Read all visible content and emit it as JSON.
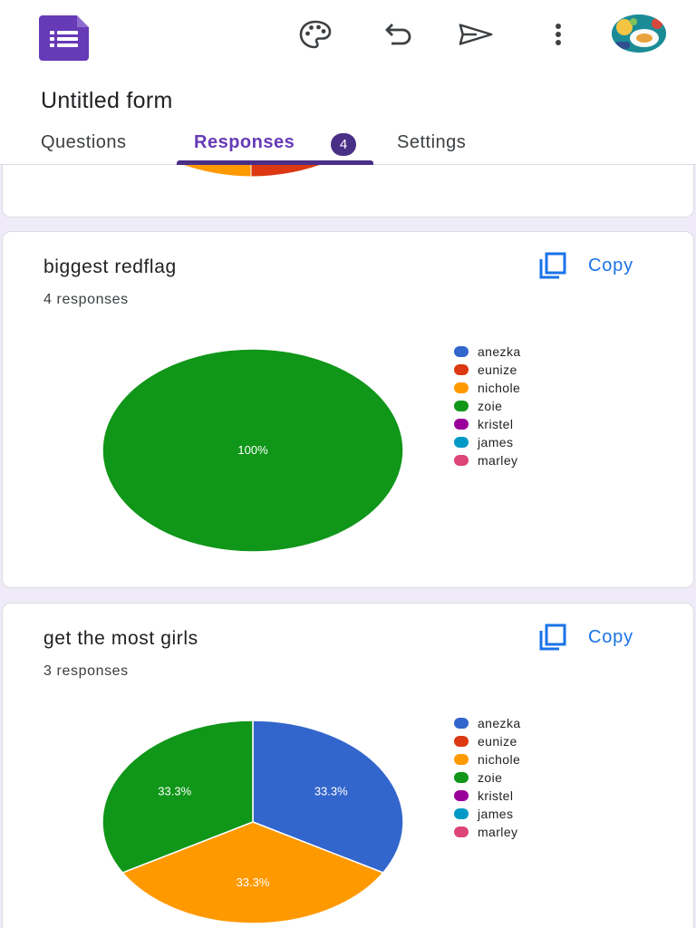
{
  "app": {
    "form_title": "Untitled form"
  },
  "toolbar": {
    "icons": [
      "palette-icon",
      "undo-icon",
      "send-icon",
      "more-vert-icon",
      "avatar"
    ]
  },
  "tabs": [
    {
      "label": "Questions",
      "active": false
    },
    {
      "label": "Responses",
      "active": true,
      "badge": "4"
    },
    {
      "label": "Settings",
      "active": false
    }
  ],
  "colors": {
    "brand": "#673ab7",
    "copy": "#1a73e8",
    "anezka": "#3366cc",
    "eunize": "#dc3912",
    "nichole": "#ff9900",
    "zoie": "#109618",
    "kristel": "#990099",
    "james": "#0099c6",
    "marley": "#dd4477"
  },
  "cards": [
    {
      "title": "biggest redflag",
      "responses": "4 responses",
      "copy_label": "Copy"
    },
    {
      "title": "get the most girls",
      "responses": "3 responses",
      "copy_label": "Copy"
    }
  ],
  "chart_data": [
    {
      "type": "pie",
      "title": "biggest redflag",
      "categories": [
        "anezka",
        "eunize",
        "nichole",
        "zoie",
        "kristel",
        "james",
        "marley"
      ],
      "values": [
        0,
        0,
        0,
        4,
        0,
        0,
        0
      ],
      "slice_labels": [
        "",
        "",
        "",
        "100%",
        "",
        "",
        ""
      ],
      "legend": "right"
    },
    {
      "type": "pie",
      "title": "get the most girls",
      "categories": [
        "anezka",
        "eunize",
        "nichole",
        "zoie",
        "kristel",
        "james",
        "marley"
      ],
      "values": [
        1,
        0,
        1,
        1,
        0,
        0,
        0
      ],
      "slice_labels": [
        "33.3%",
        "",
        "33.3%",
        "33.3%",
        "",
        "",
        ""
      ],
      "legend": "right"
    }
  ]
}
